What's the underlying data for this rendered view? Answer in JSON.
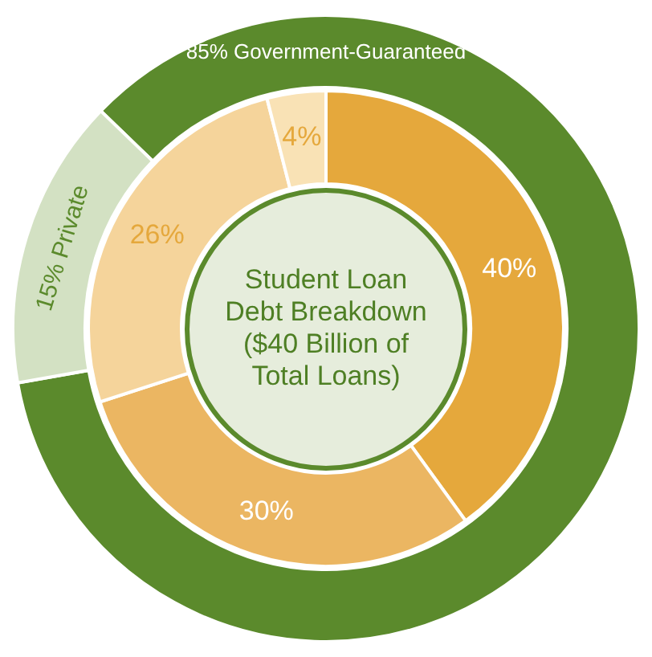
{
  "chart_data": [
    {
      "type": "donut",
      "categories": [
        "Government-Guaranteed",
        "Private"
      ],
      "values": [
        85,
        15
      ],
      "value_labels": [
        "85%",
        "15%"
      ],
      "colors": [
        "#5b8a2c",
        "#d3e1c3"
      ]
    },
    {
      "type": "donut",
      "title": "Student Loan Debt Breakdown ($40 Billion of Total Loans)",
      "categories": [
        null,
        null,
        null,
        null
      ],
      "values": [
        40,
        30,
        26,
        4
      ],
      "value_labels": [
        "40%",
        "30%",
        "26%",
        "4%"
      ],
      "colors": [
        "#e5a83c",
        "#ebb662",
        "#f5d49b",
        "#f9e2b5"
      ]
    }
  ]
}
